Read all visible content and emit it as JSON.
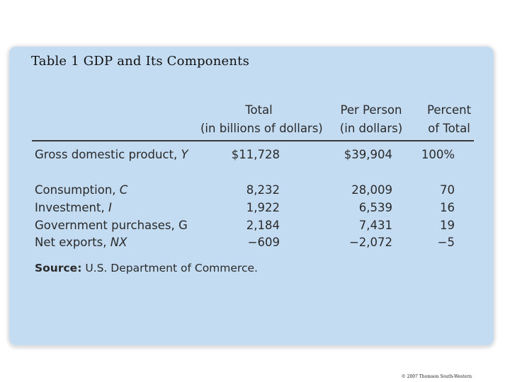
{
  "title": "Table 1 GDP and Its Components",
  "table": {
    "headers": [
      {
        "line1": "Total",
        "line2": "(in billions of dollars)"
      },
      {
        "line1": "Per Person",
        "line2": "(in dollars)"
      },
      {
        "line1": "Percent",
        "line2": "of Total"
      }
    ],
    "rows": [
      {
        "pre": "Gross domestic product, ",
        "var": "Y",
        "total": "$11,728",
        "per_person": "$39,904",
        "percent": "100%"
      },
      {
        "pre": "Consumption, ",
        "var": "C",
        "total": "8,232",
        "per_person": "28,009",
        "percent": "70"
      },
      {
        "pre": "Investment, ",
        "var": "I",
        "total": "1,922",
        "per_person": "6,539",
        "percent": "16"
      },
      {
        "pre": "Government purchases, ",
        "var": "G",
        "total": "2,184",
        "per_person": "7,431",
        "percent": "19"
      },
      {
        "pre": "Net exports, ",
        "var": "NX",
        "total": "−609",
        "per_person": "−2,072",
        "percent": "−5"
      }
    ]
  },
  "source": {
    "label": "Source:",
    "text": " U.S. Department of Commerce."
  },
  "copyright": "© 2007 Thomson South-Western",
  "colors": {
    "panel": "#c4dcf2",
    "text": "#2a2a2a"
  }
}
